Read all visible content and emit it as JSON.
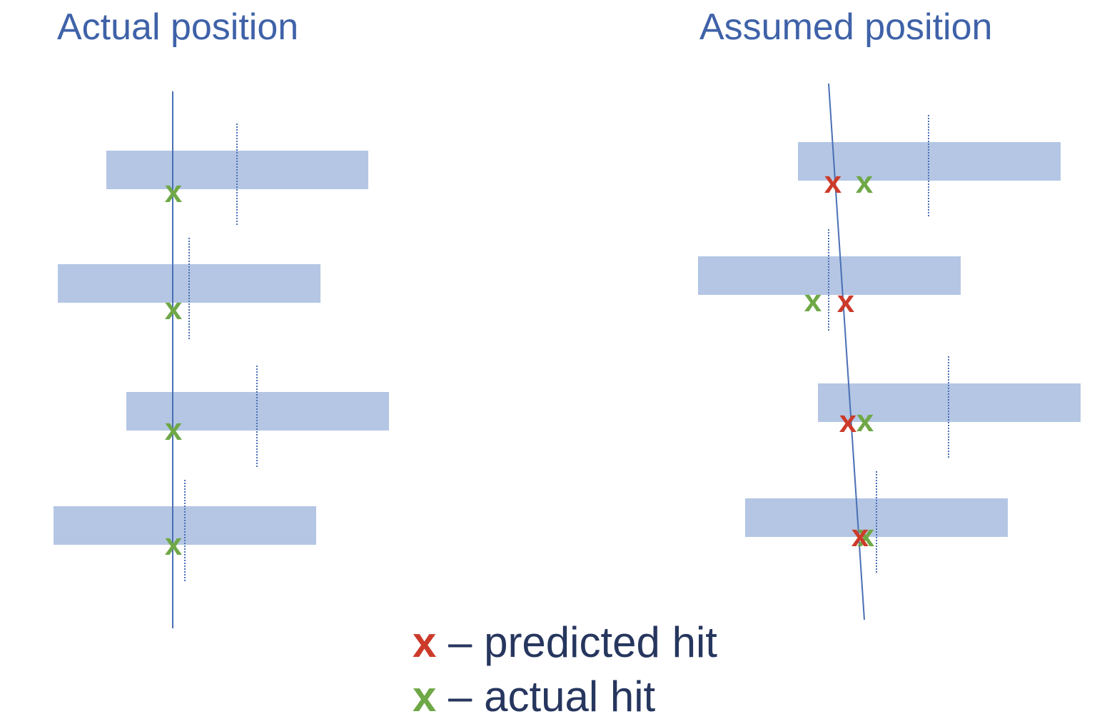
{
  "titles": {
    "left": "Actual position",
    "right": "Assumed position"
  },
  "marks": {
    "symbol": "x",
    "predicted_color": "#cc3b2a",
    "actual_color": "#6fa846"
  },
  "colors": {
    "layer": "#b4c6e4",
    "track": "#4a6fb5",
    "reference": "#4a6fb5"
  },
  "legend": {
    "predicted": {
      "symbol": "x",
      "text": " – predicted hit"
    },
    "actual": {
      "symbol": "x",
      "text": " – actual hit"
    }
  }
}
